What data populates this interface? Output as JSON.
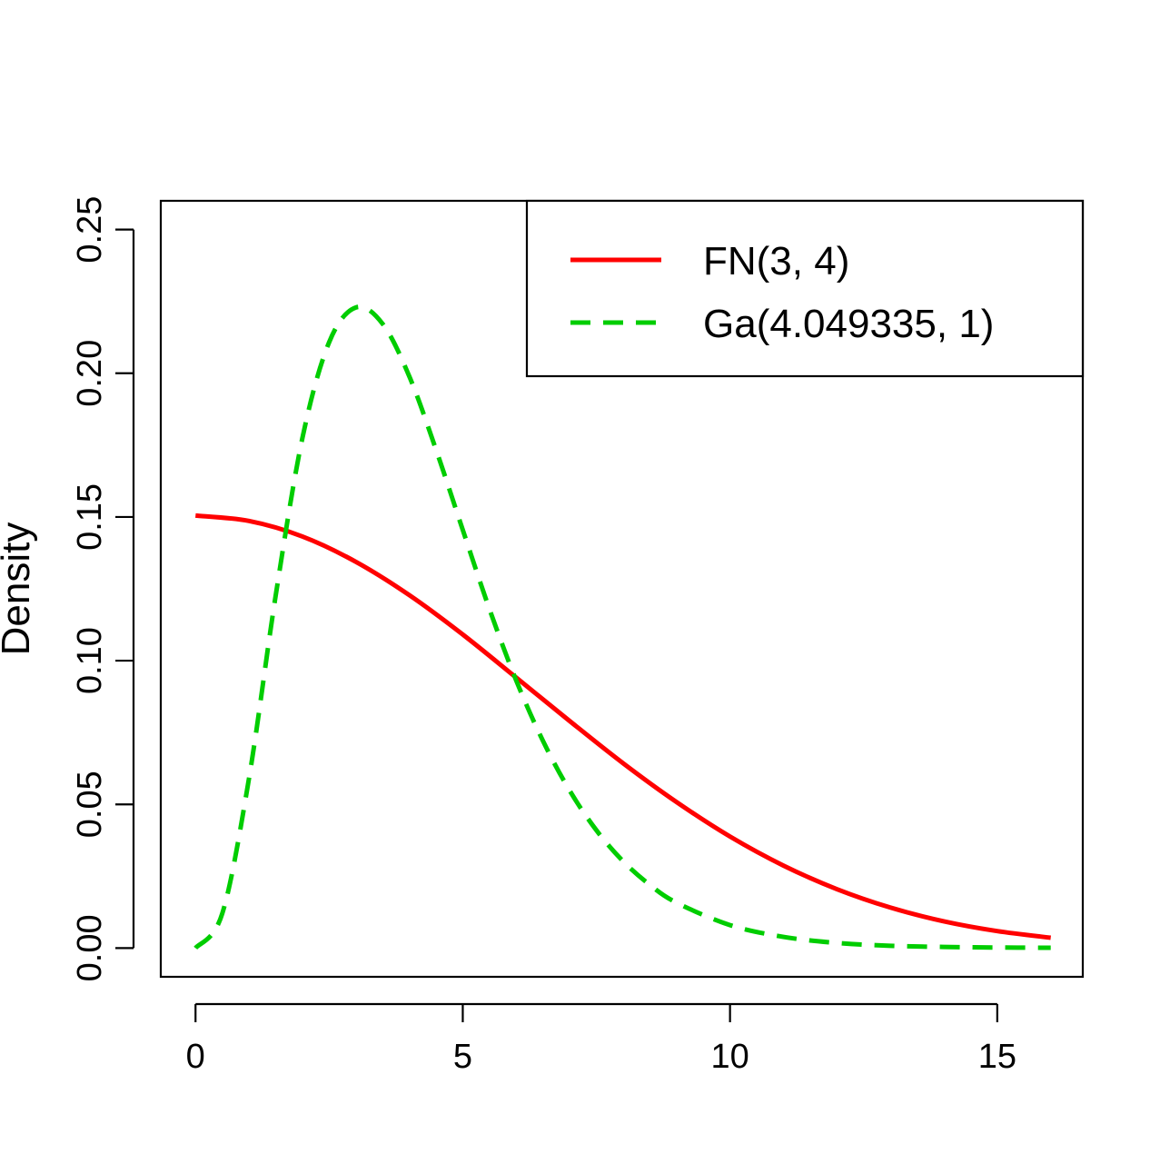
{
  "chart_data": {
    "type": "line",
    "title": "",
    "xlabel": "",
    "ylabel": "Density",
    "xlim": [
      -0.65,
      16.6
    ],
    "ylim": [
      -0.01,
      0.26
    ],
    "x_ticks": [
      0,
      5,
      10,
      15
    ],
    "y_ticks": [
      0.0,
      0.05,
      0.1,
      0.15,
      0.2,
      0.25
    ],
    "x_tick_labels": [
      "0",
      "5",
      "10",
      "15"
    ],
    "y_tick_labels": [
      "0.00",
      "0.05",
      "0.10",
      "0.15",
      "0.20",
      "0.25"
    ],
    "grid": false,
    "legend_position": "top-right",
    "series": [
      {
        "name": "FN(3, 4)",
        "color": "#ff0000",
        "dash": "solid",
        "x": [
          0,
          1,
          2,
          3,
          4,
          5,
          6,
          7,
          8,
          9,
          10,
          11,
          12,
          13,
          14,
          15,
          16
        ],
        "y": [
          0.1505,
          0.1486,
          0.1432,
          0.1344,
          0.1228,
          0.1091,
          0.0941,
          0.079,
          0.0643,
          0.0508,
          0.0388,
          0.0287,
          0.0205,
          0.0141,
          0.0093,
          0.0059,
          0.0036
        ]
      },
      {
        "name": "Ga(4.049335, 1)",
        "color": "#00cd00",
        "dash": "dashed",
        "x": [
          0,
          0.5,
          1,
          1.5,
          2,
          2.5,
          3,
          3.5,
          4,
          4.5,
          5,
          5.5,
          6,
          6.5,
          7,
          7.5,
          8,
          8.5,
          9,
          10,
          11,
          12,
          13,
          14,
          15,
          16
        ],
        "y": [
          0.0,
          0.012,
          0.059,
          0.1227,
          0.1775,
          0.2108,
          0.2229,
          0.2172,
          0.1989,
          0.1734,
          0.1455,
          0.1179,
          0.0931,
          0.0721,
          0.0548,
          0.041,
          0.0302,
          0.022,
          0.0158,
          0.008,
          0.0039,
          0.0018,
          0.0008,
          0.0004,
          0.0002,
          0.0001
        ]
      }
    ]
  }
}
